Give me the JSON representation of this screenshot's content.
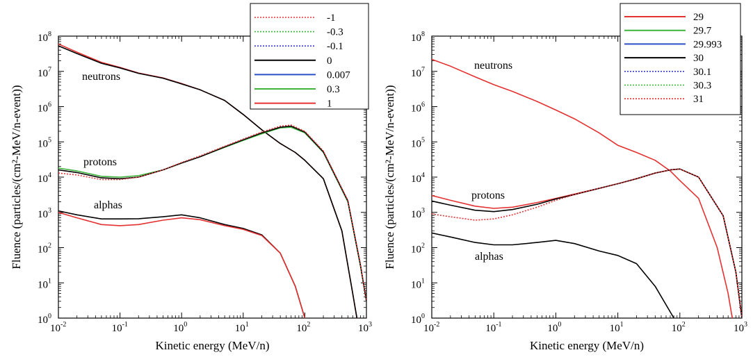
{
  "chart_data": [
    {
      "type": "line",
      "xlabel": "Kinetic energy (MeV/n)",
      "ylabel": "Fluence (particles/(cm²-MeV/n-event))",
      "xscale": "log",
      "yscale": "log",
      "xlim": [
        0.01,
        1000
      ],
      "ylim": [
        1,
        100000000
      ],
      "x_ticks": [
        {
          "base": "10",
          "exp": "-2"
        },
        {
          "base": "10",
          "exp": "-1"
        },
        {
          "base": "10",
          "exp": "0"
        },
        {
          "base": "10",
          "exp": "1"
        },
        {
          "base": "10",
          "exp": "2"
        },
        {
          "base": "10",
          "exp": "3"
        }
      ],
      "y_ticks": [
        {
          "base": "10",
          "exp": "0"
        },
        {
          "base": "10",
          "exp": "1"
        },
        {
          "base": "10",
          "exp": "2"
        },
        {
          "base": "10",
          "exp": "3"
        },
        {
          "base": "10",
          "exp": "4"
        },
        {
          "base": "10",
          "exp": "5"
        },
        {
          "base": "10",
          "exp": "6"
        },
        {
          "base": "10",
          "exp": "7"
        },
        {
          "base": "10",
          "exp": "8"
        }
      ],
      "legend_position": "top-right",
      "legend": [
        {
          "label": "-1",
          "color": "#e53030",
          "style": "dotted"
        },
        {
          "label": "-0.3",
          "color": "#3cb43c",
          "style": "dotted"
        },
        {
          "label": "-0.1",
          "color": "#3c3ccc",
          "style": "dotted"
        },
        {
          "label": "0",
          "color": "#000000",
          "style": "solid"
        },
        {
          "label": "0.007",
          "color": "#2b4fc8",
          "style": "solid"
        },
        {
          "label": "0.3",
          "color": "#3cb43c",
          "style": "solid"
        },
        {
          "label": "1",
          "color": "#e53030",
          "style": "solid"
        }
      ],
      "annotations": [
        "neutrons",
        "protons",
        "alphas"
      ],
      "series": [
        {
          "particle": "neutrons",
          "variant": "1",
          "points": [
            [
              0.01,
              60000000.0
            ],
            [
              0.02,
              35000000.0
            ],
            [
              0.05,
              18000000.0
            ],
            [
              0.1,
              13000000.0
            ],
            [
              0.2,
              9000000.0
            ],
            [
              0.5,
              6500000.0
            ],
            [
              1,
              4500000.0
            ],
            [
              2,
              3000000.0
            ],
            [
              5,
              1500000.0
            ],
            [
              10,
              600000.0
            ],
            [
              20,
              220000.0
            ],
            [
              40,
              90000.0
            ],
            [
              70,
              50000.0
            ],
            [
              100,
              30000.0
            ],
            [
              200,
              9000.0
            ],
            [
              400,
              300.0
            ],
            [
              600,
              5
            ],
            [
              700,
              1
            ]
          ]
        },
        {
          "particle": "neutrons",
          "variant": "0",
          "points": [
            [
              0.01,
              53000000.0
            ],
            [
              0.02,
              32000000.0
            ],
            [
              0.05,
              17000000.0
            ],
            [
              0.1,
              12500000.0
            ],
            [
              0.2,
              8800000.0
            ],
            [
              0.5,
              6400000.0
            ],
            [
              1,
              4400000.0
            ],
            [
              2,
              3000000.0
            ],
            [
              5,
              1500000.0
            ],
            [
              10,
              600000.0
            ],
            [
              20,
              220000.0
            ],
            [
              40,
              90000.0
            ],
            [
              70,
              50000.0
            ],
            [
              100,
              30000.0
            ],
            [
              200,
              9000.0
            ],
            [
              400,
              300.0
            ],
            [
              600,
              5
            ],
            [
              700,
              1
            ]
          ]
        },
        {
          "particle": "protons",
          "variant": "0.3",
          "points": [
            [
              0.01,
              18000.0
            ],
            [
              0.02,
              15000.0
            ],
            [
              0.05,
              10500.0
            ],
            [
              0.1,
              10000.0
            ],
            [
              0.2,
              11000.0
            ],
            [
              0.5,
              16000.0
            ],
            [
              1,
              25000.0
            ],
            [
              2,
              38000.0
            ],
            [
              5,
              70000.0
            ],
            [
              10,
              110000.0
            ],
            [
              20,
              170000.0
            ],
            [
              40,
              250000.0
            ],
            [
              60,
              260000.0
            ],
            [
              100,
              180000.0
            ],
            [
              200,
              50000.0
            ],
            [
              500,
              2000.0
            ],
            [
              800,
              30
            ],
            [
              1000,
              3
            ]
          ]
        },
        {
          "particle": "protons",
          "variant": "0",
          "points": [
            [
              0.01,
              16000.0
            ],
            [
              0.02,
              13500.0
            ],
            [
              0.05,
              9500.0
            ],
            [
              0.1,
              9000.0
            ],
            [
              0.2,
              10000.0
            ],
            [
              0.5,
              16000.0
            ],
            [
              1,
              25000.0
            ],
            [
              2,
              38000.0
            ],
            [
              5,
              72000.0
            ],
            [
              10,
              115000.0
            ],
            [
              20,
              180000.0
            ],
            [
              40,
              260000.0
            ],
            [
              60,
              280000.0
            ],
            [
              100,
              190000.0
            ],
            [
              200,
              52000.0
            ],
            [
              500,
              2100.0
            ],
            [
              800,
              32
            ],
            [
              1000,
              3
            ]
          ]
        },
        {
          "particle": "protons",
          "variant": "-1",
          "points": [
            [
              0.01,
              13000.0
            ],
            [
              0.02,
              11500.0
            ],
            [
              0.05,
              8500.0
            ],
            [
              0.1,
              8500.0
            ],
            [
              0.2,
              10000.0
            ],
            [
              0.5,
              16000.0
            ],
            [
              1,
              26000.0
            ],
            [
              2,
              40000.0
            ],
            [
              5,
              75000.0
            ],
            [
              10,
              120000.0
            ],
            [
              20,
              190000.0
            ],
            [
              40,
              280000.0
            ],
            [
              60,
              300000.0
            ],
            [
              100,
              200000.0
            ],
            [
              200,
              55000.0
            ],
            [
              500,
              2200.0
            ],
            [
              800,
              34
            ],
            [
              1000,
              3
            ]
          ]
        },
        {
          "particle": "alphas",
          "variant": "0",
          "points": [
            [
              0.01,
              1100.0
            ],
            [
              0.02,
              850.0
            ],
            [
              0.05,
              650.0
            ],
            [
              0.1,
              650.0
            ],
            [
              0.2,
              660.0
            ],
            [
              0.5,
              750.0
            ],
            [
              1,
              850.0
            ],
            [
              2,
              700.0
            ],
            [
              5,
              450.0
            ],
            [
              10,
              350.0
            ],
            [
              20,
              230.0
            ],
            [
              40,
              70
            ],
            [
              70,
              8
            ],
            [
              100,
              1
            ]
          ]
        },
        {
          "particle": "alphas",
          "variant": "1",
          "points": [
            [
              0.01,
              1000.0
            ],
            [
              0.02,
              700.0
            ],
            [
              0.05,
              450.0
            ],
            [
              0.1,
              420.0
            ],
            [
              0.2,
              450.0
            ],
            [
              0.5,
              600.0
            ],
            [
              1,
              700.0
            ],
            [
              2,
              620.0
            ],
            [
              5,
              420.0
            ],
            [
              10,
              330.0
            ],
            [
              20,
              220.0
            ],
            [
              40,
              70
            ],
            [
              70,
              8
            ],
            [
              100,
              1
            ]
          ]
        }
      ]
    },
    {
      "type": "line",
      "xlabel": "Kinetic energy (MeV/n)",
      "ylabel": "Fluence (particles/(cm²-MeV/n-event))",
      "xscale": "log",
      "yscale": "log",
      "xlim": [
        0.01,
        1000
      ],
      "ylim": [
        1,
        100000000
      ],
      "x_ticks": [
        {
          "base": "10",
          "exp": "-2"
        },
        {
          "base": "10",
          "exp": "-1"
        },
        {
          "base": "10",
          "exp": "0"
        },
        {
          "base": "10",
          "exp": "1"
        },
        {
          "base": "10",
          "exp": "2"
        },
        {
          "base": "10",
          "exp": "3"
        }
      ],
      "y_ticks": [
        {
          "base": "10",
          "exp": "0"
        },
        {
          "base": "10",
          "exp": "1"
        },
        {
          "base": "10",
          "exp": "2"
        },
        {
          "base": "10",
          "exp": "3"
        },
        {
          "base": "10",
          "exp": "4"
        },
        {
          "base": "10",
          "exp": "5"
        },
        {
          "base": "10",
          "exp": "6"
        },
        {
          "base": "10",
          "exp": "7"
        },
        {
          "base": "10",
          "exp": "8"
        }
      ],
      "legend_position": "top-right",
      "legend": [
        {
          "label": "29",
          "color": "#e53030",
          "style": "solid"
        },
        {
          "label": "29.7",
          "color": "#3cb43c",
          "style": "solid"
        },
        {
          "label": "29.993",
          "color": "#2b4fc8",
          "style": "solid"
        },
        {
          "label": "30",
          "color": "#000000",
          "style": "solid"
        },
        {
          "label": "30.1",
          "color": "#3c3ccc",
          "style": "dotted"
        },
        {
          "label": "30.3",
          "color": "#3cb43c",
          "style": "dotted"
        },
        {
          "label": "31",
          "color": "#e53030",
          "style": "dotted"
        }
      ],
      "annotations": [
        "neutrons",
        "protons",
        "alphas"
      ],
      "series": [
        {
          "particle": "neutrons",
          "variant": "29",
          "points": [
            [
              0.01,
              22000000.0
            ],
            [
              0.02,
              14000000.0
            ],
            [
              0.05,
              7000000.0
            ],
            [
              0.1,
              4200000.0
            ],
            [
              0.2,
              2700000.0
            ],
            [
              0.5,
              1400000.0
            ],
            [
              1,
              800000.0
            ],
            [
              2,
              450000.0
            ],
            [
              5,
              180000.0
            ],
            [
              10,
              80000.0
            ],
            [
              20,
              50000.0
            ],
            [
              40,
              30000.0
            ],
            [
              70,
              15000.0
            ],
            [
              100,
              8000.0
            ],
            [
              200,
              2500.0
            ],
            [
              400,
              100.0
            ],
            [
              600,
              5
            ],
            [
              700,
              1
            ]
          ]
        },
        {
          "particle": "protons",
          "variant": "29",
          "points": [
            [
              0.01,
              3000.0
            ],
            [
              0.02,
              2200.0
            ],
            [
              0.05,
              1500.0
            ],
            [
              0.1,
              1300.0
            ],
            [
              0.2,
              1400.0
            ],
            [
              0.5,
              1900.0
            ],
            [
              1,
              2500.0
            ],
            [
              2,
              3300.0
            ],
            [
              5,
              4800.0
            ],
            [
              10,
              6500.0
            ],
            [
              20,
              9000.0
            ],
            [
              40,
              13000.0
            ],
            [
              70,
              16000.0
            ],
            [
              100,
              17000.0
            ],
            [
              200,
              10000.0
            ],
            [
              500,
              800.0
            ],
            [
              800,
              20
            ],
            [
              1000,
              1
            ]
          ]
        },
        {
          "particle": "protons",
          "variant": "30",
          "points": [
            [
              0.01,
              2100.0
            ],
            [
              0.02,
              1600.0
            ],
            [
              0.05,
              1150.0
            ],
            [
              0.1,
              1050.0
            ],
            [
              0.2,
              1200.0
            ],
            [
              0.5,
              1700.0
            ],
            [
              1,
              2400.0
            ],
            [
              2,
              3200.0
            ],
            [
              5,
              4800.0
            ],
            [
              10,
              6500.0
            ],
            [
              20,
              9000.0
            ],
            [
              40,
              13000.0
            ],
            [
              70,
              16000.0
            ],
            [
              100,
              17000.0
            ],
            [
              200,
              10000.0
            ],
            [
              500,
              800.0
            ],
            [
              800,
              20
            ],
            [
              1000,
              1
            ]
          ]
        },
        {
          "particle": "protons",
          "variant": "31",
          "points": [
            [
              0.01,
              900.0
            ],
            [
              0.02,
              750.0
            ],
            [
              0.05,
              600.0
            ],
            [
              0.1,
              650.0
            ],
            [
              0.2,
              850.0
            ],
            [
              0.5,
              1400.0
            ],
            [
              1,
              2200.0
            ],
            [
              2,
              3200.0
            ],
            [
              5,
              4800.0
            ],
            [
              10,
              6500.0
            ],
            [
              20,
              9000.0
            ],
            [
              40,
              13000.0
            ],
            [
              70,
              16000.0
            ],
            [
              100,
              17000.0
            ],
            [
              200,
              10000.0
            ],
            [
              500,
              800.0
            ],
            [
              800,
              20
            ],
            [
              1000,
              1
            ]
          ]
        },
        {
          "particle": "alphas",
          "variant": "30",
          "points": [
            [
              0.01,
              260.0
            ],
            [
              0.02,
              200.0
            ],
            [
              0.05,
              140.0
            ],
            [
              0.1,
              120.0
            ],
            [
              0.2,
              120.0
            ],
            [
              0.5,
              140.0
            ],
            [
              1,
              160.0
            ],
            [
              2,
              130.0
            ],
            [
              5,
              80
            ],
            [
              10,
              60
            ],
            [
              20,
              35
            ],
            [
              40,
              8
            ],
            [
              70,
              1.5
            ],
            [
              80,
              1
            ]
          ]
        }
      ]
    }
  ]
}
